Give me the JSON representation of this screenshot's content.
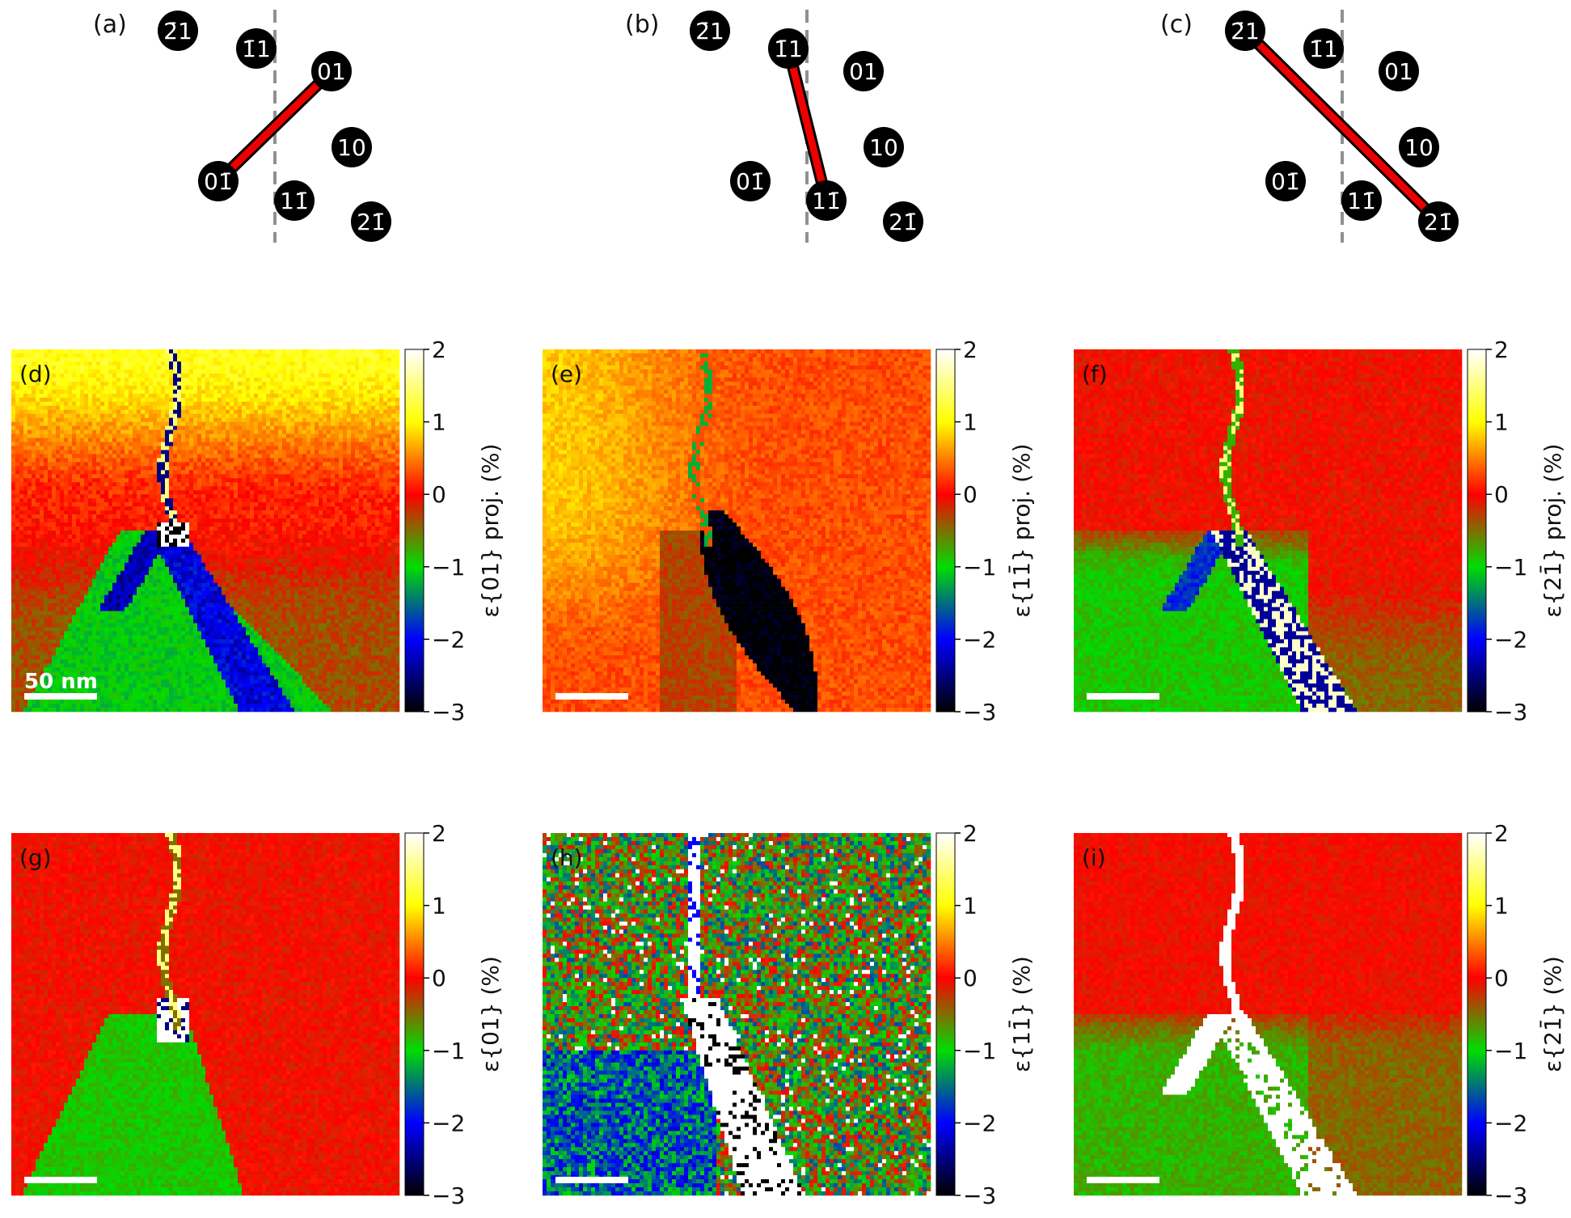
{
  "diagram_panels": [
    {
      "label": "(a)",
      "spots": [
        {
          "text": "2̄1"
        },
        {
          "text": "1̄1"
        },
        {
          "text": "01"
        },
        {
          "text": "0"
        },
        {
          "text": "10"
        },
        {
          "text": "1"
        },
        {
          "text": "2"
        }
      ],
      "spot_labels": [
        "2̄1",
        "1̄1",
        "01",
        "01̄",
        "10",
        "11̄",
        "21̄"
      ],
      "link": [
        "01̄",
        "01"
      ]
    },
    {
      "label": "(b)",
      "spot_labels": [
        "2̄1",
        "1̄1",
        "01",
        "01̄",
        "10",
        "11̄",
        "21̄"
      ],
      "link": [
        "1̄1",
        "11̄"
      ]
    },
    {
      "label": "(c)",
      "spot_labels": [
        "2̄1",
        "1̄1",
        "01",
        "01̄",
        "10",
        "11̄",
        "21̄"
      ],
      "link": [
        "2̄1",
        "21̄"
      ]
    }
  ],
  "map_panels": [
    {
      "label": "(d)",
      "ylabel": "ε{01} proj. (%)",
      "scalebar": "50 nm",
      "variant": "proj01"
    },
    {
      "label": "(e)",
      "ylabel": "ε{11̄} proj. (%)",
      "scalebar": "",
      "variant": "proj11"
    },
    {
      "label": "(f)",
      "ylabel": "ε{21̄} proj. (%)",
      "scalebar": "",
      "variant": "proj21"
    },
    {
      "label": "(g)",
      "ylabel": "ε{01} (%)",
      "scalebar": "",
      "variant": "true01"
    },
    {
      "label": "(h)",
      "ylabel": "ε{11̄} (%)",
      "scalebar": "",
      "variant": "true11"
    },
    {
      "label": "(i)",
      "ylabel": "ε{21̄} (%)",
      "scalebar": "",
      "variant": "true21"
    }
  ],
  "colorbar": {
    "ticks": [
      "2",
      "1",
      "0",
      "−1",
      "−2",
      "−3"
    ],
    "range": [
      -3,
      2
    ],
    "colormap": [
      "#000000",
      "#0000ff",
      "#00dd00",
      "#ff0000",
      "#ffff00",
      "#ffffff"
    ]
  },
  "colors": {
    "link": "#ee0000",
    "spot": "#000000",
    "mirror_line": "#909090"
  }
}
